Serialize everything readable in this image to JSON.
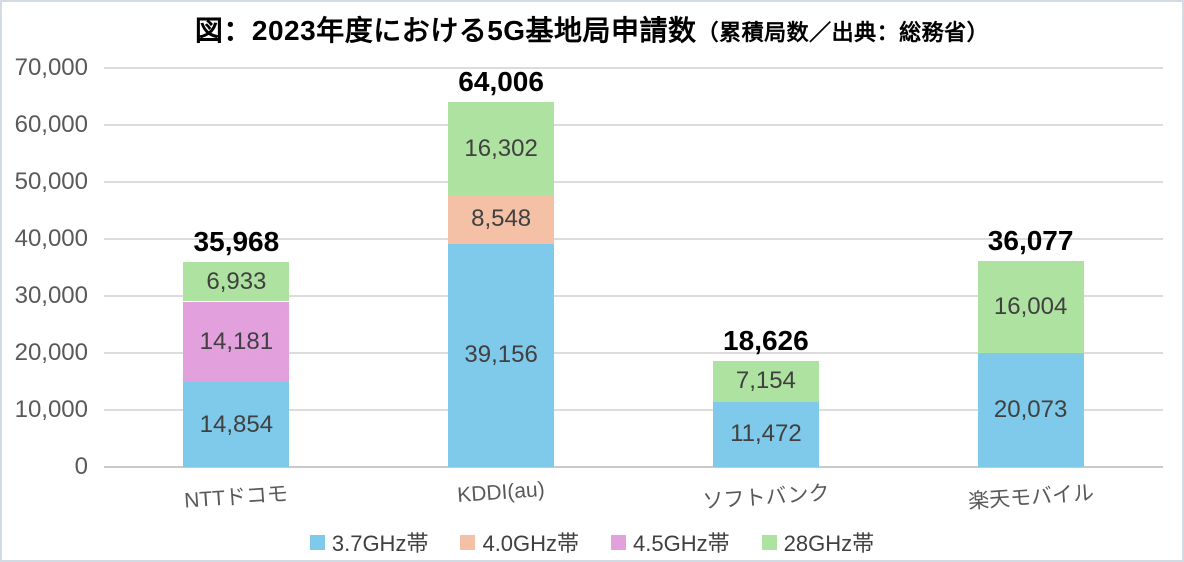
{
  "title": {
    "main": "図：2023年度における5G基地局申請数",
    "note": "（累積局数／出典：総務省）"
  },
  "chart_data": {
    "type": "bar",
    "stacked": true,
    "title": "図：2023年度における5G基地局申請数（累積局数／出典：総務省）",
    "categories": [
      "NTTドコモ",
      "KDDI(au)",
      "ソフトバンク",
      "楽天モバイル"
    ],
    "series": [
      {
        "name": "3.7GHz帯",
        "color": "#7fc9ea",
        "values": [
          14854,
          39156,
          11472,
          20073
        ]
      },
      {
        "name": "4.0GHz帯",
        "color": "#f4c1a6",
        "values": [
          0,
          8548,
          0,
          0
        ]
      },
      {
        "name": "4.5GHz帯",
        "color": "#e2a0dd",
        "values": [
          14181,
          0,
          0,
          0
        ]
      },
      {
        "name": "28GHz帯",
        "color": "#aee2a0",
        "values": [
          6933,
          16302,
          7154,
          16004
        ]
      }
    ],
    "totals": [
      35968,
      64006,
      18626,
      36077
    ],
    "ylim": [
      0,
      70000
    ],
    "ytick_step": 10000,
    "yticks": [
      "0",
      "10,000",
      "20,000",
      "30,000",
      "40,000",
      "50,000",
      "60,000",
      "70,000"
    ],
    "grid": true,
    "legend_position": "bottom"
  },
  "colors": {
    "grid": "#dcdcdc",
    "axis": "#c9c9c9",
    "tick_text": "#595959",
    "segment_text": "#404040",
    "total_text": "#000000",
    "frame_border": "#d4dae2"
  }
}
